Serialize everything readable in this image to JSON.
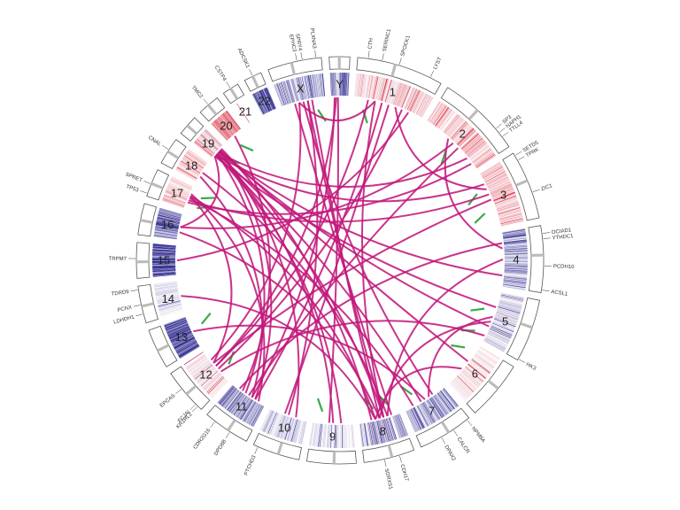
{
  "chromosomes": [
    {
      "name": "1",
      "len": 249
    },
    {
      "name": "2",
      "len": 243
    },
    {
      "name": "3",
      "len": 198
    },
    {
      "name": "4",
      "len": 191
    },
    {
      "name": "5",
      "len": 181
    },
    {
      "name": "6",
      "len": 171
    },
    {
      "name": "7",
      "len": 159
    },
    {
      "name": "8",
      "len": 146
    },
    {
      "name": "9",
      "len": 141
    },
    {
      "name": "10",
      "len": 136
    },
    {
      "name": "11",
      "len": 135
    },
    {
      "name": "12",
      "len": 134
    },
    {
      "name": "13",
      "len": 115
    },
    {
      "name": "14",
      "len": 107
    },
    {
      "name": "15",
      "len": 102
    },
    {
      "name": "16",
      "len": 90
    },
    {
      "name": "17",
      "len": 81
    },
    {
      "name": "18",
      "len": 78
    },
    {
      "name": "19",
      "len": 59
    },
    {
      "name": "20",
      "len": 63
    },
    {
      "name": "21",
      "len": 48
    },
    {
      "name": "22",
      "len": 51
    },
    {
      "name": "X",
      "len": 155
    },
    {
      "name": "Y",
      "len": 59
    }
  ],
  "genes": [
    {
      "label": "CTH",
      "chr": "1",
      "pos": 0.12
    },
    {
      "label": "SERINC1",
      "chr": "1",
      "pos": 0.28
    },
    {
      "label": "SPOCK1",
      "chr": "1",
      "pos": 0.48
    },
    {
      "label": "LYST",
      "chr": "1",
      "pos": 0.86
    },
    {
      "label": "SP3",
      "chr": "2",
      "pos": 0.74
    },
    {
      "label": "NAPH1",
      "chr": "2",
      "pos": 0.8
    },
    {
      "label": "TTLL4",
      "chr": "2",
      "pos": 0.86
    },
    {
      "label": "SETD5",
      "chr": "3",
      "pos": 0.04
    },
    {
      "label": "TPRK",
      "chr": "3",
      "pos": 0.12
    },
    {
      "label": "ZIC1",
      "chr": "3",
      "pos": 0.62
    },
    {
      "label": "OCIAD1",
      "chr": "4",
      "pos": 0.12
    },
    {
      "label": "YTHDC1",
      "chr": "4",
      "pos": 0.2
    },
    {
      "label": "PCDH10",
      "chr": "4",
      "pos": 0.6
    },
    {
      "label": "ACSL1",
      "chr": "4",
      "pos": 0.96
    },
    {
      "label": "HK3",
      "chr": "5",
      "pos": 0.98
    },
    {
      "label": "NPM8A",
      "chr": "7",
      "pos": 0.05
    },
    {
      "label": "CALCR",
      "chr": "7",
      "pos": 0.35
    },
    {
      "label": "DPAX2",
      "chr": "7",
      "pos": 0.6
    },
    {
      "label": "CDH17",
      "chr": "8",
      "pos": 0.3
    },
    {
      "label": "SDRXS1",
      "chr": "8",
      "pos": 0.6
    },
    {
      "label": "PTCHD3",
      "chr": "10",
      "pos": 0.9
    },
    {
      "label": "DPD8B",
      "chr": "11",
      "pos": 0.4
    },
    {
      "label": "CDR2G16",
      "chr": "11",
      "pos": 0.78
    },
    {
      "label": "KR1RL2",
      "chr": "12",
      "pos": 0.1
    },
    {
      "label": "FCJAI",
      "chr": "12",
      "pos": 0.16
    },
    {
      "label": "EPCAS",
      "chr": "12",
      "pos": 0.6
    },
    {
      "label": "LDHDH1",
      "chr": "14",
      "pos": 0.25
    },
    {
      "label": "PCNX",
      "chr": "14",
      "pos": 0.5
    },
    {
      "label": "TDRD9",
      "chr": "14",
      "pos": 0.9
    },
    {
      "label": "TRPM7",
      "chr": "15",
      "pos": 0.55
    },
    {
      "label": "TP53",
      "chr": "17",
      "pos": 0.1
    },
    {
      "label": "SPRET",
      "chr": "17",
      "pos": 0.45
    },
    {
      "label": "CNAL",
      "chr": "18",
      "pos": 0.55
    },
    {
      "label": "TMC2",
      "chr": "20",
      "pos": 0.5
    },
    {
      "label": "CSTP4",
      "chr": "21",
      "pos": 0.5
    },
    {
      "label": "ADCSK1",
      "chr": "22",
      "pos": 0.5
    },
    {
      "label": "PLXNA3",
      "chr": "X",
      "pos": 0.9
    },
    {
      "label": "SPRY4",
      "chr": "X",
      "pos": 0.65
    },
    {
      "label": "EPHC3",
      "chr": "X",
      "pos": 0.55
    }
  ],
  "colors": {
    "link": "#c2187b",
    "cnv_low": "#2f2a8f",
    "cnv_high": "#d62828",
    "marker": "#3aa84a",
    "ideogram_stroke": "#555555"
  }
}
